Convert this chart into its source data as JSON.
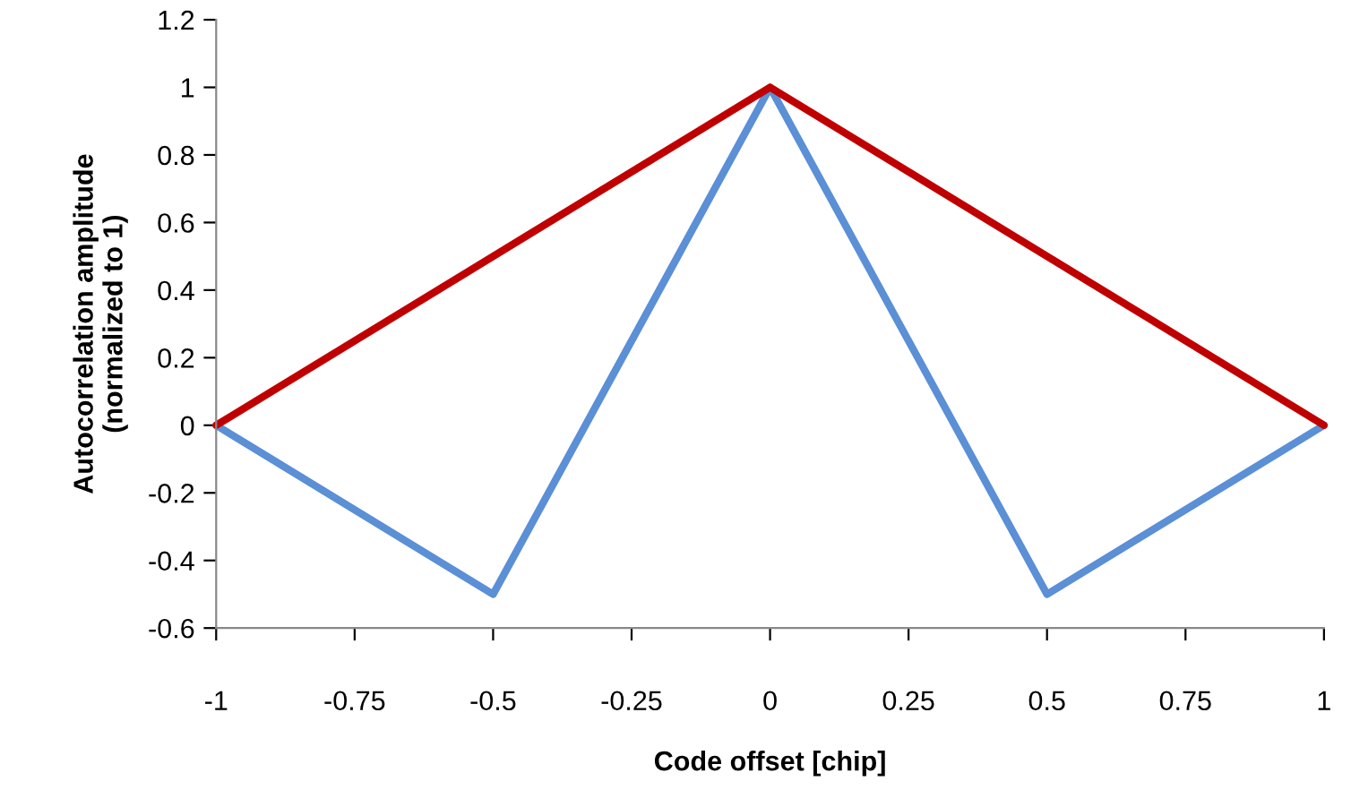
{
  "chart_data": {
    "type": "line",
    "xlabel": "Code offset [chip]",
    "ylabel": "Autocorrelation amplitude\n(normalized to 1)",
    "series": [
      {
        "color": "#5b8fd6",
        "x": [
          -1,
          -0.5,
          0,
          0.5,
          1
        ],
        "values": [
          0,
          -0.5,
          1,
          -0.5,
          0
        ]
      },
      {
        "color": "#c00000",
        "x": [
          -1,
          0,
          1
        ],
        "values": [
          0,
          1,
          0
        ]
      }
    ],
    "xlim": [
      -1,
      1
    ],
    "xticks": [
      -1,
      -0.75,
      -0.5,
      -0.25,
      0,
      0.25,
      0.5,
      0.75,
      1
    ],
    "ylim": [
      -0.6,
      1.2
    ],
    "yticks": [
      -0.6,
      -0.4,
      -0.2,
      0,
      0.2,
      0.4,
      0.6,
      0.8,
      1,
      1.2
    ],
    "grid": false,
    "marker": "none",
    "line_style": "solid"
  }
}
